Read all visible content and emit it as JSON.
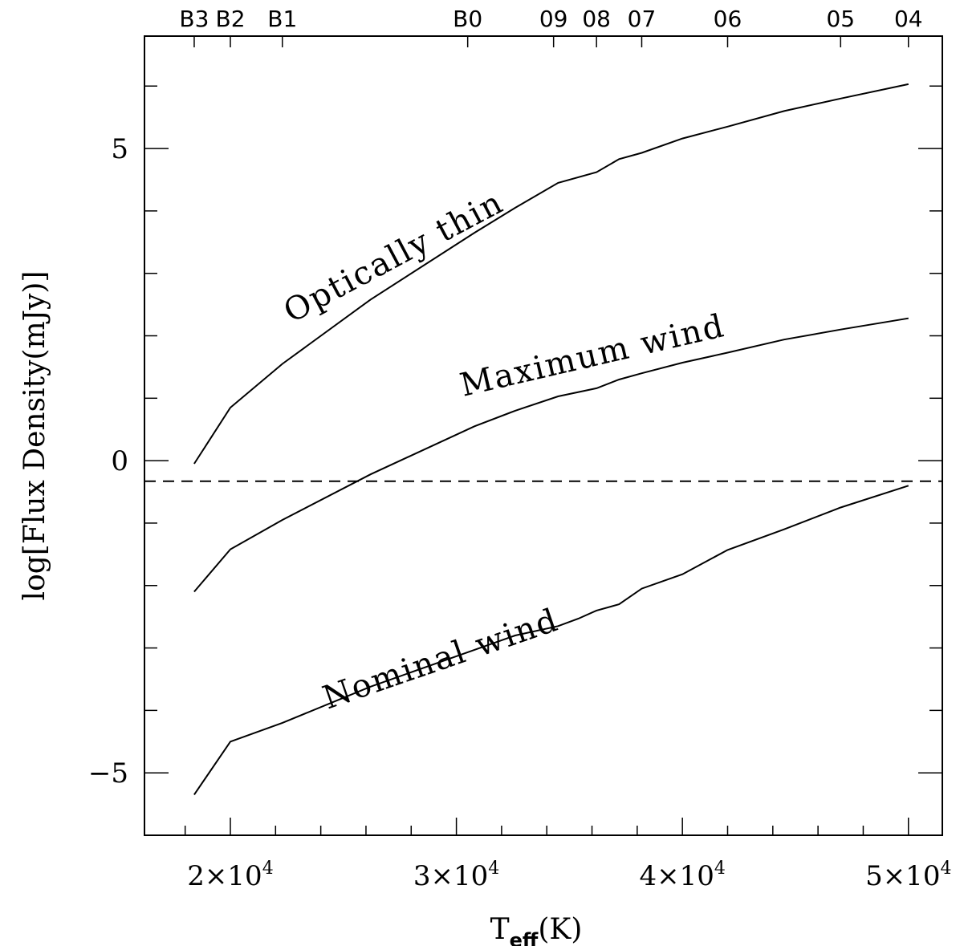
{
  "chart_data": {
    "type": "line",
    "xlabel": "T",
    "xlabel_sub": "eff",
    "xlabel_unit": "(K)",
    "ylabel": "log[Flux Density(mJy)]",
    "xlim": [
      16200,
      51500
    ],
    "ylim": [
      -6.0,
      6.8
    ],
    "x_ticks": [
      {
        "value": 20000,
        "mantissa": "2×10",
        "exp": "4"
      },
      {
        "value": 30000,
        "mantissa": "3×10",
        "exp": "4"
      },
      {
        "value": 40000,
        "mantissa": "4×10",
        "exp": "4"
      },
      {
        "value": 50000,
        "mantissa": "5×10",
        "exp": "4"
      }
    ],
    "y_ticks": [
      {
        "value": -5,
        "label": "−5"
      },
      {
        "value": 0,
        "label": "0"
      },
      {
        "value": 5,
        "label": "5"
      }
    ],
    "spectral_types": [
      {
        "label": "B3",
        "x": 18400
      },
      {
        "label": "B2",
        "x": 20000
      },
      {
        "label": "B1",
        "x": 22300
      },
      {
        "label": "B0",
        "x": 30500
      },
      {
        "label": "09",
        "x": 34300
      },
      {
        "label": "08",
        "x": 36200
      },
      {
        "label": "07",
        "x": 38200
      },
      {
        "label": "06",
        "x": 42000
      },
      {
        "label": "05",
        "x": 47000
      },
      {
        "label": "04",
        "x": 50000
      }
    ],
    "series": [
      {
        "label": "Optically thin",
        "x": [
          18400,
          20000,
          22300,
          26200,
          30800,
          32600,
          34500,
          36200,
          37200,
          38200,
          40000,
          42000,
          44500,
          47000,
          50000
        ],
        "y": [
          -0.05,
          0.85,
          1.55,
          2.58,
          3.65,
          4.05,
          4.45,
          4.62,
          4.83,
          4.93,
          5.16,
          5.35,
          5.6,
          5.8,
          6.03
        ]
      },
      {
        "label": "Maximum wind",
        "x": [
          18400,
          20000,
          22300,
          26200,
          30800,
          32600,
          34500,
          36200,
          37200,
          38200,
          40000,
          42000,
          44500,
          47000,
          50000
        ],
        "y": [
          -2.1,
          -1.42,
          -0.95,
          -0.22,
          0.55,
          0.8,
          1.03,
          1.16,
          1.3,
          1.4,
          1.57,
          1.73,
          1.94,
          2.1,
          2.28
        ]
      },
      {
        "label": "Nominal wind",
        "x": [
          18400,
          20000,
          22300,
          26200,
          30800,
          32600,
          34500,
          35400,
          36200,
          37200,
          38200,
          40000,
          42000,
          44500,
          47000,
          50000
        ],
        "y": [
          -5.35,
          -4.5,
          -4.2,
          -3.62,
          -3.03,
          -2.8,
          -2.65,
          -2.53,
          -2.4,
          -2.3,
          -2.05,
          -1.82,
          -1.43,
          -1.1,
          -0.75,
          -0.4
        ]
      }
    ],
    "reference_line": {
      "y": -0.33,
      "style": "dashed"
    },
    "curve_labels": [
      {
        "text": "Optically thin",
        "x": 22700,
        "y": 2.2,
        "angle": -28
      },
      {
        "text": "Maximum wind",
        "x": 30300,
        "y": 1.03,
        "angle": -13
      },
      {
        "text": "Nominal wind",
        "x": 24300,
        "y": -3.98,
        "angle": -19
      }
    ]
  }
}
